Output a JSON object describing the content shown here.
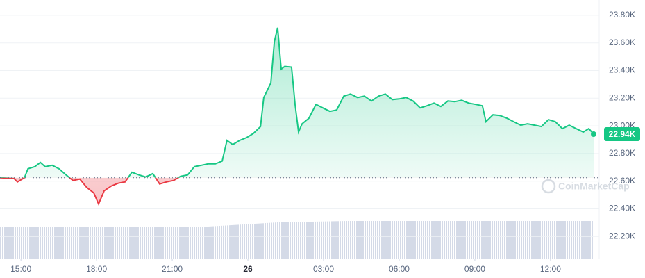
{
  "chart_data": {
    "type": "line",
    "x": [
      14.17,
      14.72,
      14.86,
      15.14,
      15.28,
      15.55,
      15.77,
      15.96,
      16.24,
      16.51,
      16.79,
      17.06,
      17.34,
      17.61,
      17.89,
      18.08,
      18.3,
      18.58,
      18.85,
      19.13,
      19.4,
      19.68,
      19.95,
      20.23,
      20.5,
      20.78,
      21.05,
      21.33,
      21.61,
      21.88,
      22.16,
      22.43,
      22.71,
      22.98,
      23.17,
      23.4,
      23.67,
      23.95,
      24.22,
      24.5,
      24.63,
      24.91,
      25.05,
      25.18,
      25.32,
      25.46,
      25.73,
      25.87,
      26.01,
      26.15,
      26.42,
      26.7,
      26.97,
      27.25,
      27.52,
      27.8,
      28.07,
      28.35,
      28.62,
      28.9,
      29.18,
      29.45,
      29.73,
      30.0,
      30.28,
      30.55,
      30.83,
      31.1,
      31.38,
      31.65,
      31.93,
      32.2,
      32.48,
      32.75,
      33.03,
      33.3,
      33.44,
      33.72,
      33.99,
      34.27,
      34.54,
      34.82,
      35.09,
      35.37,
      35.64,
      35.92,
      36.19,
      36.47,
      36.74,
      37.02,
      37.3,
      37.52,
      37.71
    ],
    "series": [
      {
        "color": "#16c784",
        "color_below": "#ea3943",
        "values": [
          22625,
          22620,
          22595,
          22625,
          22690,
          22705,
          22735,
          22705,
          22715,
          22690,
          22645,
          22605,
          22615,
          22555,
          22515,
          22435,
          22530,
          22565,
          22585,
          22595,
          22665,
          22645,
          22630,
          22655,
          22580,
          22595,
          22605,
          22635,
          22645,
          22705,
          22715,
          22725,
          22725,
          22745,
          22895,
          22865,
          22895,
          22915,
          22945,
          22995,
          23205,
          23310,
          23610,
          23710,
          23410,
          23430,
          23425,
          23155,
          22955,
          23015,
          23055,
          23155,
          23130,
          23105,
          23115,
          23215,
          23230,
          23205,
          23215,
          23180,
          23215,
          23230,
          23190,
          23195,
          23205,
          23180,
          23130,
          23145,
          23165,
          23140,
          23180,
          23175,
          23185,
          23165,
          23155,
          23145,
          23030,
          23080,
          23075,
          23055,
          23030,
          23005,
          23015,
          23005,
          22995,
          23045,
          23030,
          22980,
          23005,
          22980,
          22955,
          22980,
          22940
        ]
      }
    ],
    "reference_line": 22625,
    "last_price": {
      "value": 22940,
      "label": "22.94K"
    },
    "xlim": [
      14.17,
      37.93
    ],
    "xticks": [
      {
        "value": 15,
        "label": "15:00"
      },
      {
        "value": 18,
        "label": "18:00"
      },
      {
        "value": 21,
        "label": "21:00"
      },
      {
        "value": 24,
        "label": "26"
      },
      {
        "value": 27,
        "label": "03:00"
      },
      {
        "value": 30,
        "label": "06:00"
      },
      {
        "value": 33,
        "label": "09:00"
      },
      {
        "value": 36,
        "label": "12:00"
      }
    ],
    "ylim": [
      21900,
      23910
    ],
    "yticks": [
      {
        "value": 22200,
        "label": "22.20K"
      },
      {
        "value": 22400,
        "label": "22.40K"
      },
      {
        "value": 22600,
        "label": "22.60K"
      },
      {
        "value": 22800,
        "label": "22.80K"
      },
      {
        "value": 23000,
        "label": "23.00K"
      },
      {
        "value": 23200,
        "label": "23.20K"
      },
      {
        "value": 23400,
        "label": "23.40K"
      },
      {
        "value": 23600,
        "label": "23.60K"
      },
      {
        "value": 23800,
        "label": "23.80K"
      }
    ],
    "grid": true,
    "watermark": "CoinMarketCap"
  }
}
